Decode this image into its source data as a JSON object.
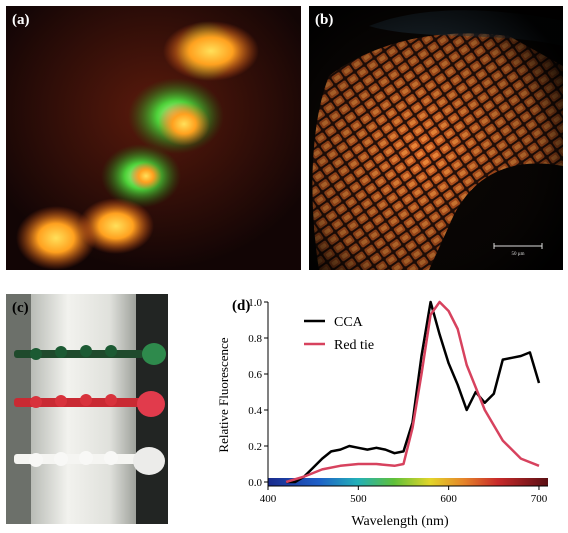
{
  "figure": {
    "panel_a": {
      "label": "(a)"
    },
    "panel_b": {
      "label": "(b)",
      "scale_bar_text": "50 µm"
    },
    "panel_c": {
      "label": "(c)"
    },
    "panel_d": {
      "label": "(d)"
    }
  },
  "chart_data": {
    "type": "line",
    "title": "",
    "xlabel": "Wavelength (nm)",
    "ylabel": "Relative Fluorescence",
    "xlim": [
      400,
      710
    ],
    "ylim": [
      0,
      1.0
    ],
    "xticks": [
      400,
      500,
      600,
      700
    ],
    "yticks": [
      0.0,
      0.2,
      0.4,
      0.6,
      0.8,
      1.0
    ],
    "ytick_labels": [
      "0.0",
      "0.2",
      "0.4",
      "0.6",
      "0.8",
      "1.0"
    ],
    "legend_position": "top-left",
    "spectrum_bar": true,
    "series": [
      {
        "name": "CCA",
        "color": "#000000",
        "x": [
          420,
          430,
          440,
          450,
          460,
          470,
          480,
          490,
          500,
          510,
          520,
          530,
          540,
          550,
          560,
          570,
          580,
          590,
          600,
          610,
          620,
          630,
          640,
          650,
          660,
          670,
          680,
          690,
          700
        ],
        "y": [
          0.0,
          0.0,
          0.03,
          0.08,
          0.13,
          0.17,
          0.18,
          0.2,
          0.19,
          0.18,
          0.19,
          0.18,
          0.16,
          0.17,
          0.33,
          0.7,
          1.0,
          0.82,
          0.66,
          0.54,
          0.4,
          0.5,
          0.44,
          0.49,
          0.68,
          0.69,
          0.7,
          0.72,
          0.55
        ]
      },
      {
        "name": "Red tie",
        "color": "#d7425e",
        "x": [
          420,
          440,
          460,
          480,
          500,
          520,
          540,
          550,
          560,
          570,
          580,
          590,
          600,
          610,
          620,
          640,
          660,
          680,
          700
        ],
        "y": [
          0.0,
          0.03,
          0.07,
          0.09,
          0.1,
          0.1,
          0.09,
          0.1,
          0.3,
          0.6,
          0.93,
          1.0,
          0.95,
          0.85,
          0.65,
          0.4,
          0.23,
          0.13,
          0.09
        ]
      }
    ]
  }
}
